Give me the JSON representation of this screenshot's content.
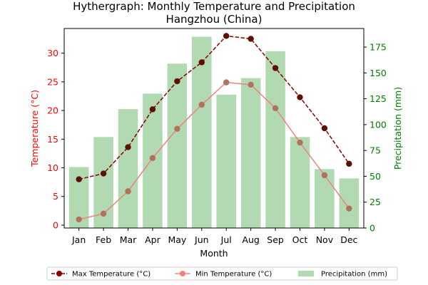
{
  "chart_data": {
    "type": "bar+line",
    "title": "Hythergraph: Monthly Temperature and Precipitation",
    "subtitle": "Hangzhou (China)",
    "xlabel": "Month",
    "ylabel_left": "Temperature (°C)",
    "ylabel_right": "Precipitation (mm)",
    "categories": [
      "Jan",
      "Feb",
      "Mar",
      "Apr",
      "May",
      "Jun",
      "Jul",
      "Aug",
      "Sep",
      "Oct",
      "Nov",
      "Dec"
    ],
    "ylim_left": [
      -0.5,
      34.3
    ],
    "ylim_right": [
      0,
      193
    ],
    "yticks_left": [
      0,
      5,
      10,
      15,
      20,
      25,
      30
    ],
    "yticks_right": [
      0,
      25,
      50,
      75,
      100,
      125,
      150,
      175
    ],
    "grid": false,
    "legend_position": "bottom-center",
    "series": [
      {
        "name": "Max Temperature (°C)",
        "kind": "line",
        "axis": "left",
        "color": "#8b0000",
        "marker_color": "#5c1000",
        "linestyle": "dashed",
        "values": [
          8.0,
          9.0,
          13.6,
          20.2,
          25.1,
          28.4,
          33.0,
          32.5,
          27.4,
          22.3,
          16.9,
          10.7
        ]
      },
      {
        "name": "Min Temperature (°C)",
        "kind": "line",
        "axis": "left",
        "color": "#f08080",
        "marker_color": "#b07258",
        "linestyle": "solid",
        "values": [
          1.0,
          2.0,
          5.9,
          11.7,
          16.8,
          21.0,
          24.9,
          24.5,
          20.4,
          14.4,
          8.7,
          2.9
        ]
      },
      {
        "name": "Precipitation (mm)",
        "kind": "bar",
        "axis": "right",
        "color": "#b2dab2",
        "values": [
          59,
          88,
          115,
          130,
          159,
          185,
          129,
          145,
          171,
          88,
          57,
          48
        ]
      }
    ]
  }
}
